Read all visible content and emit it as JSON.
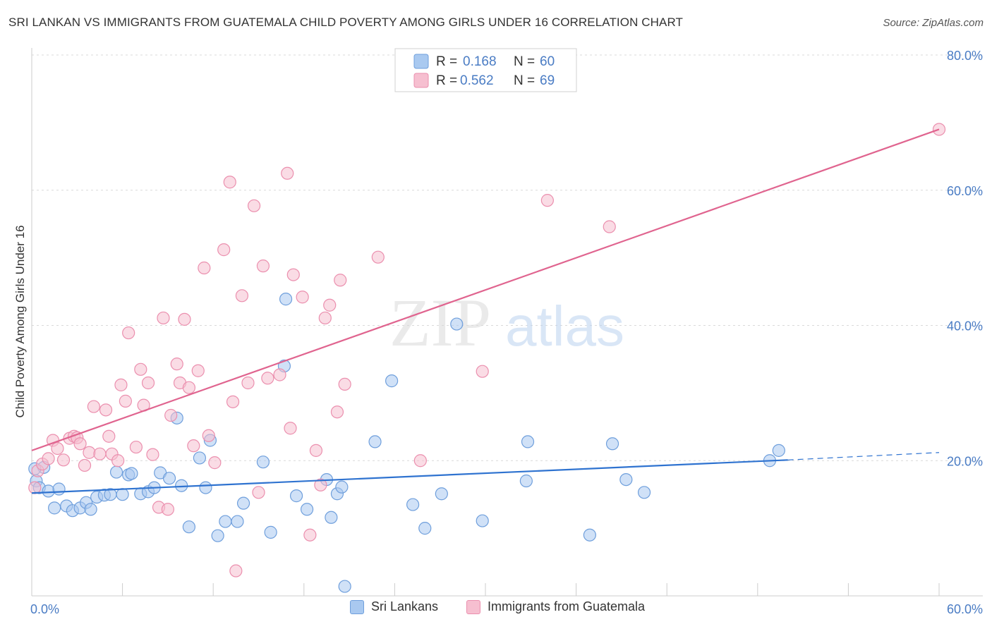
{
  "title": "SRI LANKAN VS IMMIGRANTS FROM GUATEMALA CHILD POVERTY AMONG GIRLS UNDER 16 CORRELATION CHART",
  "source": "Source: ZipAtlas.com",
  "watermark": {
    "zip": "ZIP",
    "atlas": "atlas"
  },
  "colors": {
    "blue_fill": "#a9c9f0",
    "blue_stroke": "#6f9fdc",
    "blue_line": "#2f73d0",
    "pink_fill": "#f6bfd0",
    "pink_stroke": "#eb8fae",
    "pink_line": "#e0648f",
    "axis_label": "#4a7cc4",
    "grid": "#d9d9d9"
  },
  "chart_data": {
    "type": "scatter",
    "title": "SRI LANKAN VS IMMIGRANTS FROM GUATEMALA CHILD POVERTY AMONG GIRLS UNDER 16 CORRELATION CHART",
    "ylabel": "Child Poverty Among Girls Under 16",
    "xlabel": "",
    "xlim": [
      0,
      60
    ],
    "ylim": [
      0,
      80
    ],
    "x_tick_labels": [
      "0.0%",
      "60.0%"
    ],
    "y_tick_labels": [
      "20.0%",
      "40.0%",
      "60.0%",
      "80.0%"
    ],
    "y_ticks": [
      20,
      40,
      60,
      80
    ],
    "grid": true,
    "legend_position": "top-center",
    "stats": [
      {
        "r_label": "R =",
        "r_value": "0.168",
        "n_label": "N =",
        "n_value": "60"
      },
      {
        "r_label": "R =",
        "r_value": "0.562",
        "n_label": "N =",
        "n_value": "69"
      }
    ],
    "series": [
      {
        "name": "Sri Lankans",
        "color": "#a9c9f0",
        "trend": {
          "x0": 0,
          "y0": 15.2,
          "x1": 50,
          "y1": 20.1,
          "dash_x1": 60,
          "dash_y1": 21.2
        },
        "points": [
          [
            0.3,
            17
          ],
          [
            0.5,
            16
          ],
          [
            0.8,
            19
          ],
          [
            1.1,
            15.5
          ],
          [
            1.5,
            13
          ],
          [
            1.8,
            15.8
          ],
          [
            2.3,
            13.3
          ],
          [
            2.7,
            12.6
          ],
          [
            3.2,
            13
          ],
          [
            3.6,
            13.8
          ],
          [
            3.9,
            12.8
          ],
          [
            4.3,
            14.6
          ],
          [
            4.8,
            14.9
          ],
          [
            5.2,
            15
          ],
          [
            5.6,
            18.3
          ],
          [
            6.0,
            15
          ],
          [
            6.4,
            17.9
          ],
          [
            6.6,
            18.1
          ],
          [
            7.2,
            15.1
          ],
          [
            7.7,
            15.4
          ],
          [
            8.1,
            16
          ],
          [
            8.5,
            18.2
          ],
          [
            9.1,
            17.4
          ],
          [
            9.6,
            26.3
          ],
          [
            9.9,
            16.3
          ],
          [
            10.4,
            10.2
          ],
          [
            11.1,
            20.4
          ],
          [
            11.5,
            16
          ],
          [
            11.8,
            23
          ],
          [
            12.3,
            8.9
          ],
          [
            12.8,
            11
          ],
          [
            13.6,
            11
          ],
          [
            14.0,
            13.7
          ],
          [
            15.3,
            19.8
          ],
          [
            15.8,
            9.4
          ],
          [
            16.7,
            34
          ],
          [
            16.8,
            43.9
          ],
          [
            17.5,
            14.8
          ],
          [
            18.2,
            12.8
          ],
          [
            19.5,
            17.2
          ],
          [
            19.8,
            11.6
          ],
          [
            20.2,
            15.1
          ],
          [
            20.5,
            16.1
          ],
          [
            20.7,
            1.4
          ],
          [
            22.7,
            22.8
          ],
          [
            23.8,
            31.8
          ],
          [
            25.2,
            13.5
          ],
          [
            26.0,
            10
          ],
          [
            27.1,
            15.1
          ],
          [
            28.1,
            40.2
          ],
          [
            29.8,
            11.1
          ],
          [
            32.7,
            17
          ],
          [
            32.8,
            22.8
          ],
          [
            36.9,
            9
          ],
          [
            38.4,
            22.5
          ],
          [
            39.3,
            17.2
          ],
          [
            40.5,
            15.3
          ],
          [
            48.8,
            20
          ],
          [
            49.4,
            21.5
          ],
          [
            0.2,
            18.8
          ]
        ]
      },
      {
        "name": "Immigrants from Guatemala",
        "color": "#f6bfd0",
        "trend": {
          "x0": 0,
          "y0": 21.5,
          "x1": 60,
          "y1": 69
        },
        "points": [
          [
            0.2,
            16
          ],
          [
            0.4,
            18.5
          ],
          [
            0.7,
            19.5
          ],
          [
            1.1,
            20.3
          ],
          [
            1.4,
            23
          ],
          [
            1.7,
            21.8
          ],
          [
            2.1,
            20.1
          ],
          [
            2.5,
            23.3
          ],
          [
            2.8,
            23.6
          ],
          [
            3.0,
            23.4
          ],
          [
            3.2,
            22.5
          ],
          [
            3.5,
            19.3
          ],
          [
            3.8,
            21.2
          ],
          [
            4.1,
            28
          ],
          [
            4.5,
            21
          ],
          [
            4.9,
            27.5
          ],
          [
            5.1,
            23.6
          ],
          [
            5.3,
            21
          ],
          [
            5.7,
            20
          ],
          [
            5.9,
            31.2
          ],
          [
            6.2,
            28.8
          ],
          [
            6.4,
            38.9
          ],
          [
            6.9,
            22
          ],
          [
            7.2,
            33.5
          ],
          [
            7.4,
            28.2
          ],
          [
            7.7,
            31.5
          ],
          [
            8.0,
            20.9
          ],
          [
            8.4,
            13.1
          ],
          [
            8.7,
            41.1
          ],
          [
            9.0,
            12.8
          ],
          [
            9.2,
            26.7
          ],
          [
            9.6,
            34.3
          ],
          [
            9.8,
            31.5
          ],
          [
            10.1,
            40.9
          ],
          [
            10.4,
            30.8
          ],
          [
            10.7,
            22.2
          ],
          [
            11.0,
            33.3
          ],
          [
            11.4,
            48.5
          ],
          [
            11.7,
            23.7
          ],
          [
            12.1,
            19.7
          ],
          [
            12.7,
            51.2
          ],
          [
            13.1,
            61.2
          ],
          [
            13.3,
            28.7
          ],
          [
            13.5,
            3.7
          ],
          [
            13.9,
            44.4
          ],
          [
            14.3,
            31.5
          ],
          [
            14.7,
            57.7
          ],
          [
            15.0,
            15.3
          ],
          [
            15.3,
            48.8
          ],
          [
            15.6,
            32.2
          ],
          [
            16.4,
            32.7
          ],
          [
            16.9,
            62.5
          ],
          [
            17.1,
            24.8
          ],
          [
            17.3,
            47.5
          ],
          [
            17.9,
            44.2
          ],
          [
            18.4,
            9
          ],
          [
            18.8,
            21.5
          ],
          [
            19.1,
            16.4
          ],
          [
            19.4,
            41.1
          ],
          [
            19.7,
            43
          ],
          [
            20.2,
            27.2
          ],
          [
            20.4,
            46.7
          ],
          [
            20.7,
            31.3
          ],
          [
            22.9,
            50.1
          ],
          [
            25.7,
            20
          ],
          [
            29.8,
            33.2
          ],
          [
            34.1,
            58.5
          ],
          [
            38.2,
            54.6
          ],
          [
            60.0,
            69
          ]
        ]
      }
    ]
  }
}
